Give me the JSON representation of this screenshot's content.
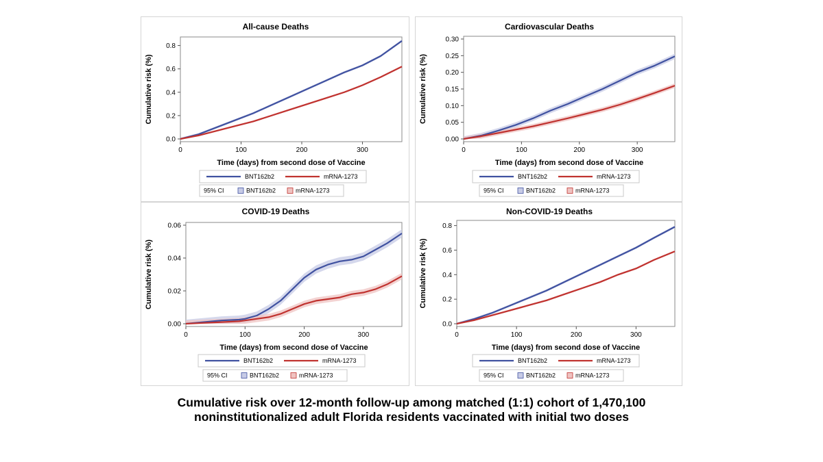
{
  "figure": {
    "caption_line1": "Cumulative risk over 12-month follow-up among matched (1:1) cohort of 1,470,100",
    "caption_line2": "noninstitutionalized adult Florida residents vaccinated with initial two doses"
  },
  "legend": {
    "ci_label": "95% CI",
    "series_colors": {
      "BNT162b2": "#3f51a0",
      "mRNA-1273": "#c0322f"
    },
    "band_colors": {
      "BNT162b2": "#c7cbe6",
      "mRNA-1273": "#efc3c1"
    }
  },
  "chart_data": [
    {
      "type": "line",
      "title": "All-cause Deaths",
      "xlabel": "Time (days) from second dose of Vaccine",
      "ylabel": "Cumulative risk (%)",
      "xlim": [
        0,
        365
      ],
      "ylim": [
        0,
        0.85
      ],
      "xticks": [
        0,
        100,
        200,
        300
      ],
      "yticks": [
        0.0,
        0.2,
        0.4,
        0.6,
        0.8
      ],
      "ytick_labels": [
        "0.0",
        "0.2",
        "0.4",
        "0.6",
        "0.8"
      ],
      "grid": false,
      "legend_position": "bottom",
      "series": [
        {
          "name": "BNT162b2",
          "x": [
            0,
            30,
            60,
            90,
            120,
            150,
            180,
            210,
            240,
            270,
            300,
            330,
            365
          ],
          "values": [
            0,
            0.04,
            0.1,
            0.16,
            0.22,
            0.29,
            0.36,
            0.43,
            0.5,
            0.57,
            0.63,
            0.71,
            0.84
          ],
          "ci": 0.01
        },
        {
          "name": "mRNA-1273",
          "x": [
            0,
            30,
            60,
            90,
            120,
            150,
            180,
            210,
            240,
            270,
            300,
            330,
            365
          ],
          "values": [
            0,
            0.03,
            0.07,
            0.11,
            0.15,
            0.2,
            0.25,
            0.3,
            0.35,
            0.4,
            0.46,
            0.53,
            0.62
          ],
          "ci": 0.008
        }
      ]
    },
    {
      "type": "line",
      "title": "Cardiovascular Deaths",
      "xlabel": "Time (days) from second dose of Vaccine",
      "ylabel": "Cumulative risk (%)",
      "xlim": [
        0,
        365
      ],
      "ylim": [
        0,
        0.3
      ],
      "xticks": [
        0,
        100,
        200,
        300
      ],
      "yticks": [
        0.0,
        0.05,
        0.1,
        0.15,
        0.2,
        0.25,
        0.3
      ],
      "ytick_labels": [
        "0.00",
        "0.05",
        "0.10",
        "0.15",
        "0.20",
        "0.25",
        "0.30"
      ],
      "grid": false,
      "legend_position": "bottom",
      "series": [
        {
          "name": "BNT162b2",
          "x": [
            0,
            30,
            60,
            90,
            120,
            150,
            180,
            210,
            240,
            270,
            300,
            330,
            365
          ],
          "values": [
            0,
            0.01,
            0.025,
            0.042,
            0.062,
            0.085,
            0.105,
            0.128,
            0.15,
            0.175,
            0.2,
            0.22,
            0.248
          ],
          "ci": 0.008
        },
        {
          "name": "mRNA-1273",
          "x": [
            0,
            30,
            60,
            90,
            120,
            150,
            180,
            210,
            240,
            270,
            300,
            330,
            365
          ],
          "values": [
            0,
            0.008,
            0.018,
            0.028,
            0.038,
            0.05,
            0.062,
            0.075,
            0.088,
            0.103,
            0.12,
            0.138,
            0.16
          ],
          "ci": 0.007
        }
      ]
    },
    {
      "type": "line",
      "title": "COVID-19 Deaths",
      "xlabel": "Time (days) from second dose of Vaccine",
      "ylabel": "Cumulative risk (%)",
      "xlim": [
        0,
        365
      ],
      "ylim": [
        0,
        0.06
      ],
      "xticks": [
        0,
        100,
        200,
        300
      ],
      "yticks": [
        0.0,
        0.02,
        0.04,
        0.06
      ],
      "ytick_labels": [
        "0.00",
        "0.02",
        "0.04",
        "0.06"
      ],
      "grid": false,
      "legend_position": "bottom",
      "series": [
        {
          "name": "BNT162b2",
          "x": [
            0,
            30,
            60,
            90,
            100,
            120,
            140,
            160,
            180,
            200,
            220,
            240,
            260,
            280,
            300,
            320,
            340,
            365
          ],
          "values": [
            0,
            0.001,
            0.002,
            0.0025,
            0.003,
            0.005,
            0.009,
            0.014,
            0.021,
            0.028,
            0.033,
            0.036,
            0.038,
            0.039,
            0.041,
            0.045,
            0.049,
            0.055
          ],
          "ci": 0.0025
        },
        {
          "name": "mRNA-1273",
          "x": [
            0,
            30,
            60,
            90,
            100,
            120,
            140,
            160,
            180,
            200,
            220,
            240,
            260,
            280,
            300,
            320,
            340,
            365
          ],
          "values": [
            0,
            0.0005,
            0.001,
            0.0015,
            0.002,
            0.003,
            0.004,
            0.006,
            0.009,
            0.012,
            0.014,
            0.015,
            0.016,
            0.018,
            0.019,
            0.021,
            0.024,
            0.029
          ],
          "ci": 0.002
        }
      ]
    },
    {
      "type": "line",
      "title": "Non-COVID-19 Deaths",
      "xlabel": "Time (days) from second dose of Vaccine",
      "ylabel": "Cumulative risk (%)",
      "xlim": [
        0,
        365
      ],
      "ylim": [
        0,
        0.82
      ],
      "xticks": [
        0,
        100,
        200,
        300
      ],
      "yticks": [
        0.0,
        0.2,
        0.4,
        0.6,
        0.8
      ],
      "ytick_labels": [
        "0.0",
        "0.2",
        "0.4",
        "0.6",
        "0.8"
      ],
      "grid": false,
      "legend_position": "bottom",
      "series": [
        {
          "name": "BNT162b2",
          "x": [
            0,
            30,
            60,
            90,
            120,
            150,
            180,
            210,
            240,
            270,
            300,
            330,
            365
          ],
          "values": [
            0,
            0.04,
            0.09,
            0.15,
            0.21,
            0.27,
            0.34,
            0.41,
            0.48,
            0.55,
            0.62,
            0.7,
            0.79
          ],
          "ci": 0.01
        },
        {
          "name": "mRNA-1273",
          "x": [
            0,
            30,
            60,
            90,
            120,
            150,
            180,
            210,
            240,
            270,
            300,
            330,
            365
          ],
          "values": [
            0,
            0.03,
            0.07,
            0.11,
            0.15,
            0.19,
            0.24,
            0.29,
            0.34,
            0.4,
            0.45,
            0.52,
            0.59
          ],
          "ci": 0.008
        }
      ]
    }
  ]
}
